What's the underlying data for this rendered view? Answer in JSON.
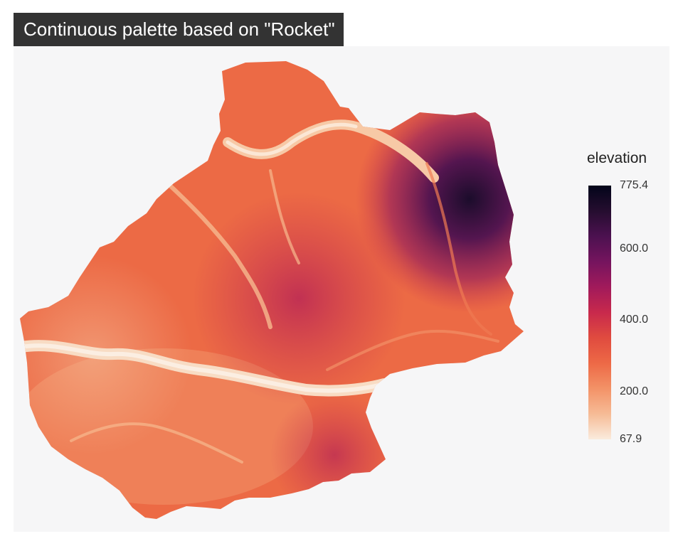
{
  "title": "Continuous palette based on \"Rocket\"",
  "legend": {
    "title": "elevation",
    "min": 67.9,
    "max": 775.4,
    "labels": [
      "775.4",
      "600.0",
      "400.0",
      "200.0",
      "67.9"
    ],
    "label_values": [
      775.4,
      600.0,
      400.0,
      200.0,
      67.9
    ]
  },
  "palette": {
    "name": "Rocket",
    "stops": [
      "#faebdd",
      "#f6bb96",
      "#f39267",
      "#ed6946",
      "#e04b3f",
      "#c8294c",
      "#a11a5b",
      "#75145e",
      "#4c1150",
      "#250d2f",
      "#03051a"
    ]
  },
  "colors": {
    "panel_background": "#f6f6f7",
    "title_background": "#333333",
    "title_text": "#ffffff"
  }
}
